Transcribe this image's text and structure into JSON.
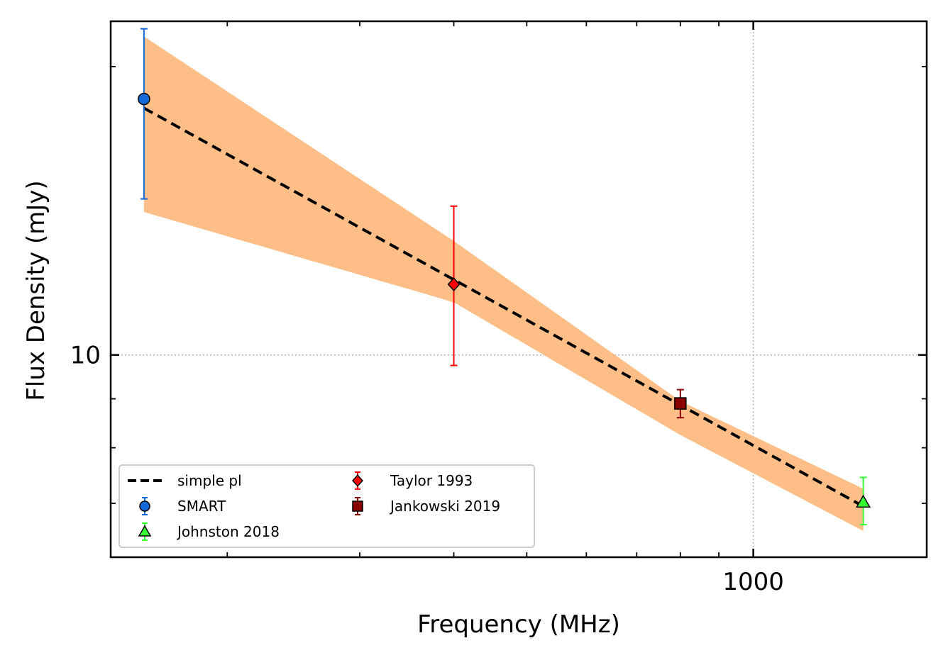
{
  "chart_data": {
    "type": "scatter",
    "xlabel": "Frequency (MHz)",
    "ylabel": "Flux Density (mJy)",
    "xscale": "log",
    "yscale": "log",
    "xlim": [
      140,
      1700
    ],
    "ylim": [
      6.15,
      22.3
    ],
    "x_ticks": [
      {
        "value": 1000,
        "label": "1000"
      }
    ],
    "y_ticks": [
      {
        "value": 10,
        "label": "10"
      }
    ],
    "grid": true,
    "legend_position": "lower-left",
    "fit": {
      "name": "simple pl",
      "x": [
        155,
        1400
      ],
      "y": [
        18.1,
        6.95
      ],
      "band_upper": [
        {
          "x": 155,
          "y": 21.5
        },
        {
          "x": 400,
          "y": 13.15
        },
        {
          "x": 800,
          "y": 8.95
        },
        {
          "x": 1400,
          "y": 7.25
        }
      ],
      "band_lower": [
        {
          "x": 155,
          "y": 14.1
        },
        {
          "x": 400,
          "y": 11.35
        },
        {
          "x": 800,
          "y": 8.25
        },
        {
          "x": 1400,
          "y": 6.55
        }
      ],
      "band_color": "#fdbf87"
    },
    "series": [
      {
        "name": "SMART",
        "marker": "circle",
        "color": "#1469d8",
        "errcolor": "#1469d8",
        "points": [
          {
            "x": 155,
            "y": 18.5,
            "yerr_low": 14.55,
            "yerr_high": 21.9
          }
        ]
      },
      {
        "name": "Johnston 2018",
        "marker": "triangle",
        "color": "#33ff33",
        "errcolor": "#33ff33",
        "points": [
          {
            "x": 1400,
            "y": 7.02,
            "yerr_low": 6.65,
            "yerr_high": 7.45
          }
        ]
      },
      {
        "name": "Taylor 1993",
        "marker": "diamond",
        "color": "#ff0000",
        "errcolor": "#ff0000",
        "points": [
          {
            "x": 400,
            "y": 11.85,
            "yerr_low": 9.75,
            "yerr_high": 14.3
          }
        ]
      },
      {
        "name": "Jankowski 2019",
        "marker": "square",
        "color": "#8b0000",
        "errcolor": "#8b0000",
        "points": [
          {
            "x": 800,
            "y": 8.9,
            "yerr_low": 8.6,
            "yerr_high": 9.2
          }
        ]
      }
    ]
  }
}
